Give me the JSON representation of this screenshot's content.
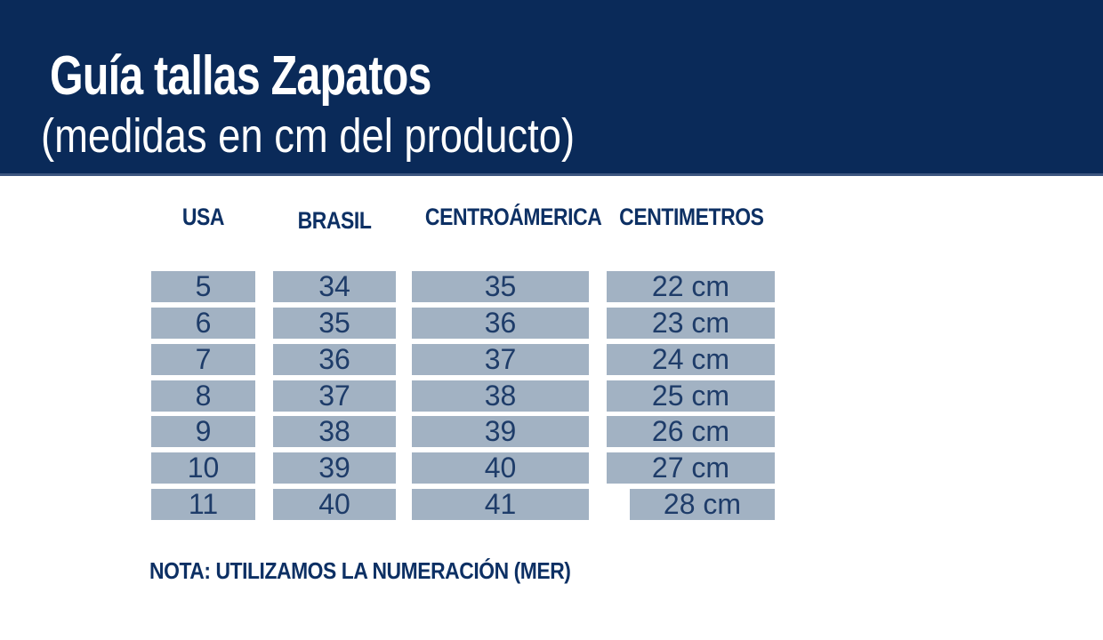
{
  "header": {
    "title": "Guía tallas Zapatos",
    "subtitle": "(medidas en cm del producto)"
  },
  "table": {
    "columns": [
      {
        "label": "USA"
      },
      {
        "label": "BRASIL"
      },
      {
        "label": "CENTROÁMERICA"
      },
      {
        "label": "CENTIMETROS"
      }
    ],
    "rows": [
      [
        "5",
        "34",
        "35",
        "22 cm"
      ],
      [
        "6",
        "35",
        "36",
        "23 cm"
      ],
      [
        "7",
        "36",
        "37",
        "24 cm"
      ],
      [
        "8",
        "37",
        "38",
        "25 cm"
      ],
      [
        "9",
        "38",
        "39",
        "26 cm"
      ],
      [
        "10",
        "39",
        "40",
        "27 cm"
      ],
      [
        "11",
        "40",
        "41",
        "28 cm"
      ]
    ]
  },
  "note": {
    "text": "NOTA: UTILIZAMOS LA NUMERACIÓN (MER)"
  },
  "colors": {
    "header-bg": "#0a2a59",
    "header-accent": "#3c557f",
    "header-text": "#ffffff",
    "cell-bg": "#a2b2c3",
    "cell-text": "#1e3c69",
    "column-header-text": "#0d3064",
    "note-text": "#0d3064",
    "page-bg": "#ffffff"
  },
  "chart_data": {
    "type": "table",
    "title": "Guía tallas Zapatos",
    "subtitle": "(medidas en cm del producto)",
    "columns": [
      "USA",
      "BRASIL",
      "CENTROÁMERICA",
      "CENTIMETROS"
    ],
    "rows": [
      [
        "5",
        "34",
        "35",
        "22 cm"
      ],
      [
        "6",
        "35",
        "36",
        "23 cm"
      ],
      [
        "7",
        "36",
        "37",
        "24 cm"
      ],
      [
        "8",
        "37",
        "38",
        "25 cm"
      ],
      [
        "9",
        "38",
        "39",
        "26 cm"
      ],
      [
        "10",
        "39",
        "40",
        "27 cm"
      ],
      [
        "11",
        "40",
        "41",
        "28 cm"
      ]
    ],
    "note": "NOTA: UTILIZAMOS LA NUMERACIÓN (MER)",
    "legend_position": "none",
    "grid": false
  }
}
